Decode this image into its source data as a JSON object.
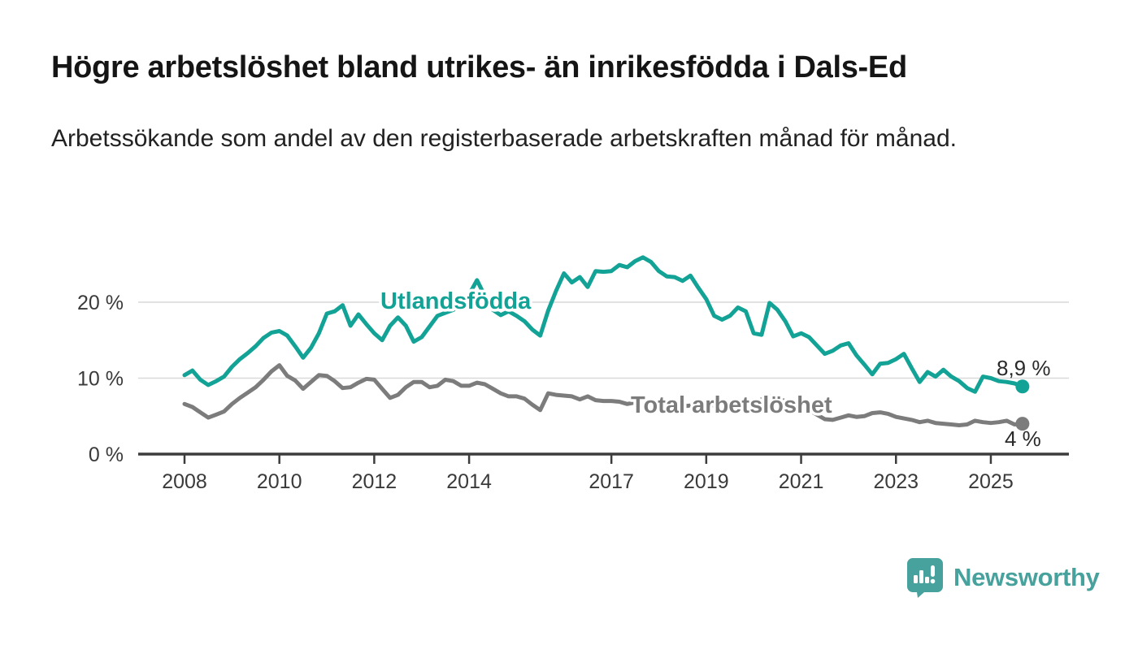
{
  "header": {
    "title": "Högre arbetslöshet bland utrikes- än inrikesfödda i Dals-Ed",
    "subtitle": "Arbetssökande som andel av den registerbaserade arbetskraften månad för månad."
  },
  "chart_data": {
    "type": "line",
    "x_start_year": 2008,
    "x_interval_months": 2,
    "x_end_year_approx": 2025.67,
    "x_ticks": [
      "2008",
      "2010",
      "2012",
      "2014",
      "2017",
      "2019",
      "2021",
      "2023",
      "2025"
    ],
    "x_tick_years": [
      2008,
      2010,
      2012,
      2014,
      2017,
      2019,
      2021,
      2023,
      2025
    ],
    "y_ticks": [
      {
        "value": 0,
        "label": "0 %"
      },
      {
        "value": 10,
        "label": "10 %"
      },
      {
        "value": 20,
        "label": "20 %"
      }
    ],
    "ylim": [
      0,
      27
    ],
    "grid": true,
    "series": [
      {
        "name": "Utlandsfödda",
        "color": "#13a296",
        "end_label": "8,9 %",
        "end_value": 8.9,
        "values": [
          10.4,
          11.0,
          9.8,
          9.1,
          9.6,
          10.2,
          11.5,
          12.5,
          13.3,
          14.2,
          15.3,
          16.0,
          16.2,
          15.6,
          14.2,
          12.7,
          14.0,
          15.9,
          18.5,
          18.8,
          19.6,
          16.9,
          18.4,
          17.1,
          15.9,
          15.0,
          16.9,
          18.0,
          16.9,
          14.8,
          15.4,
          16.8,
          18.2,
          18.6,
          19.0,
          19.6,
          21.0,
          22.9,
          20.8,
          19.0,
          18.3,
          18.8,
          18.2,
          17.5,
          16.4,
          15.6,
          18.9,
          21.5,
          23.8,
          22.6,
          23.3,
          22.0,
          24.1,
          24.0,
          24.1,
          24.9,
          24.6,
          25.4,
          25.9,
          25.3,
          24.1,
          23.4,
          23.3,
          22.8,
          23.5,
          21.9,
          20.4,
          18.2,
          17.7,
          18.2,
          19.3,
          18.8,
          15.9,
          15.7,
          19.9,
          19.0,
          17.5,
          15.5,
          15.9,
          15.4,
          14.3,
          13.2,
          13.6,
          14.3,
          14.6,
          13.0,
          11.8,
          10.5,
          11.9,
          12.0,
          12.5,
          13.2,
          11.3,
          9.5,
          10.8,
          10.2,
          11.1,
          10.2,
          9.6,
          8.7,
          8.2,
          10.2,
          10.0,
          9.6,
          9.5,
          9.3,
          8.9
        ]
      },
      {
        "name": "Total arbetslöshet",
        "color": "#7c7c7c",
        "end_label": "4 %",
        "end_value": 4.0,
        "values": [
          6.6,
          6.2,
          5.5,
          4.8,
          5.2,
          5.6,
          6.6,
          7.4,
          8.1,
          8.8,
          9.8,
          10.9,
          11.7,
          10.3,
          9.7,
          8.6,
          9.5,
          10.4,
          10.3,
          9.6,
          8.7,
          8.8,
          9.4,
          9.9,
          9.8,
          8.6,
          7.4,
          7.8,
          8.8,
          9.5,
          9.5,
          8.8,
          9.0,
          9.8,
          9.6,
          9.0,
          9.0,
          9.4,
          9.2,
          8.6,
          8.0,
          7.6,
          7.6,
          7.3,
          6.5,
          5.8,
          8.0,
          7.8,
          7.7,
          7.6,
          7.2,
          7.6,
          7.1,
          7.0,
          7.0,
          6.9,
          6.6,
          6.8,
          6.6,
          6.5,
          6.4,
          6.6,
          6.5,
          6.3,
          6.4,
          6.5,
          6.5,
          6.4,
          6.3,
          6.4,
          6.5,
          6.6,
          6.7,
          7.2,
          7.6,
          7.3,
          7.0,
          6.7,
          6.2,
          5.8,
          5.2,
          4.6,
          4.5,
          4.8,
          5.1,
          4.9,
          5.0,
          5.4,
          5.5,
          5.3,
          4.9,
          4.7,
          4.5,
          4.2,
          4.4,
          4.1,
          4.0,
          3.9,
          3.8,
          3.9,
          4.4,
          4.2,
          4.1,
          4.2,
          4.4,
          3.9,
          4.0
        ]
      }
    ],
    "colors": {
      "accent_teal": "#13a296",
      "series_gray": "#7c7c7c",
      "grid": "#d9d9d9",
      "axis": "#3c3c3c",
      "tick_text": "#3a3a3a",
      "end_label_text": "#2a2a2a"
    },
    "legend_position": "inline-labels"
  },
  "footer": {
    "brand": "Newsworthy",
    "brand_color": "#47a19c",
    "logo_icon": "newsworthy-speech-bubble-bar-chart-icon"
  }
}
